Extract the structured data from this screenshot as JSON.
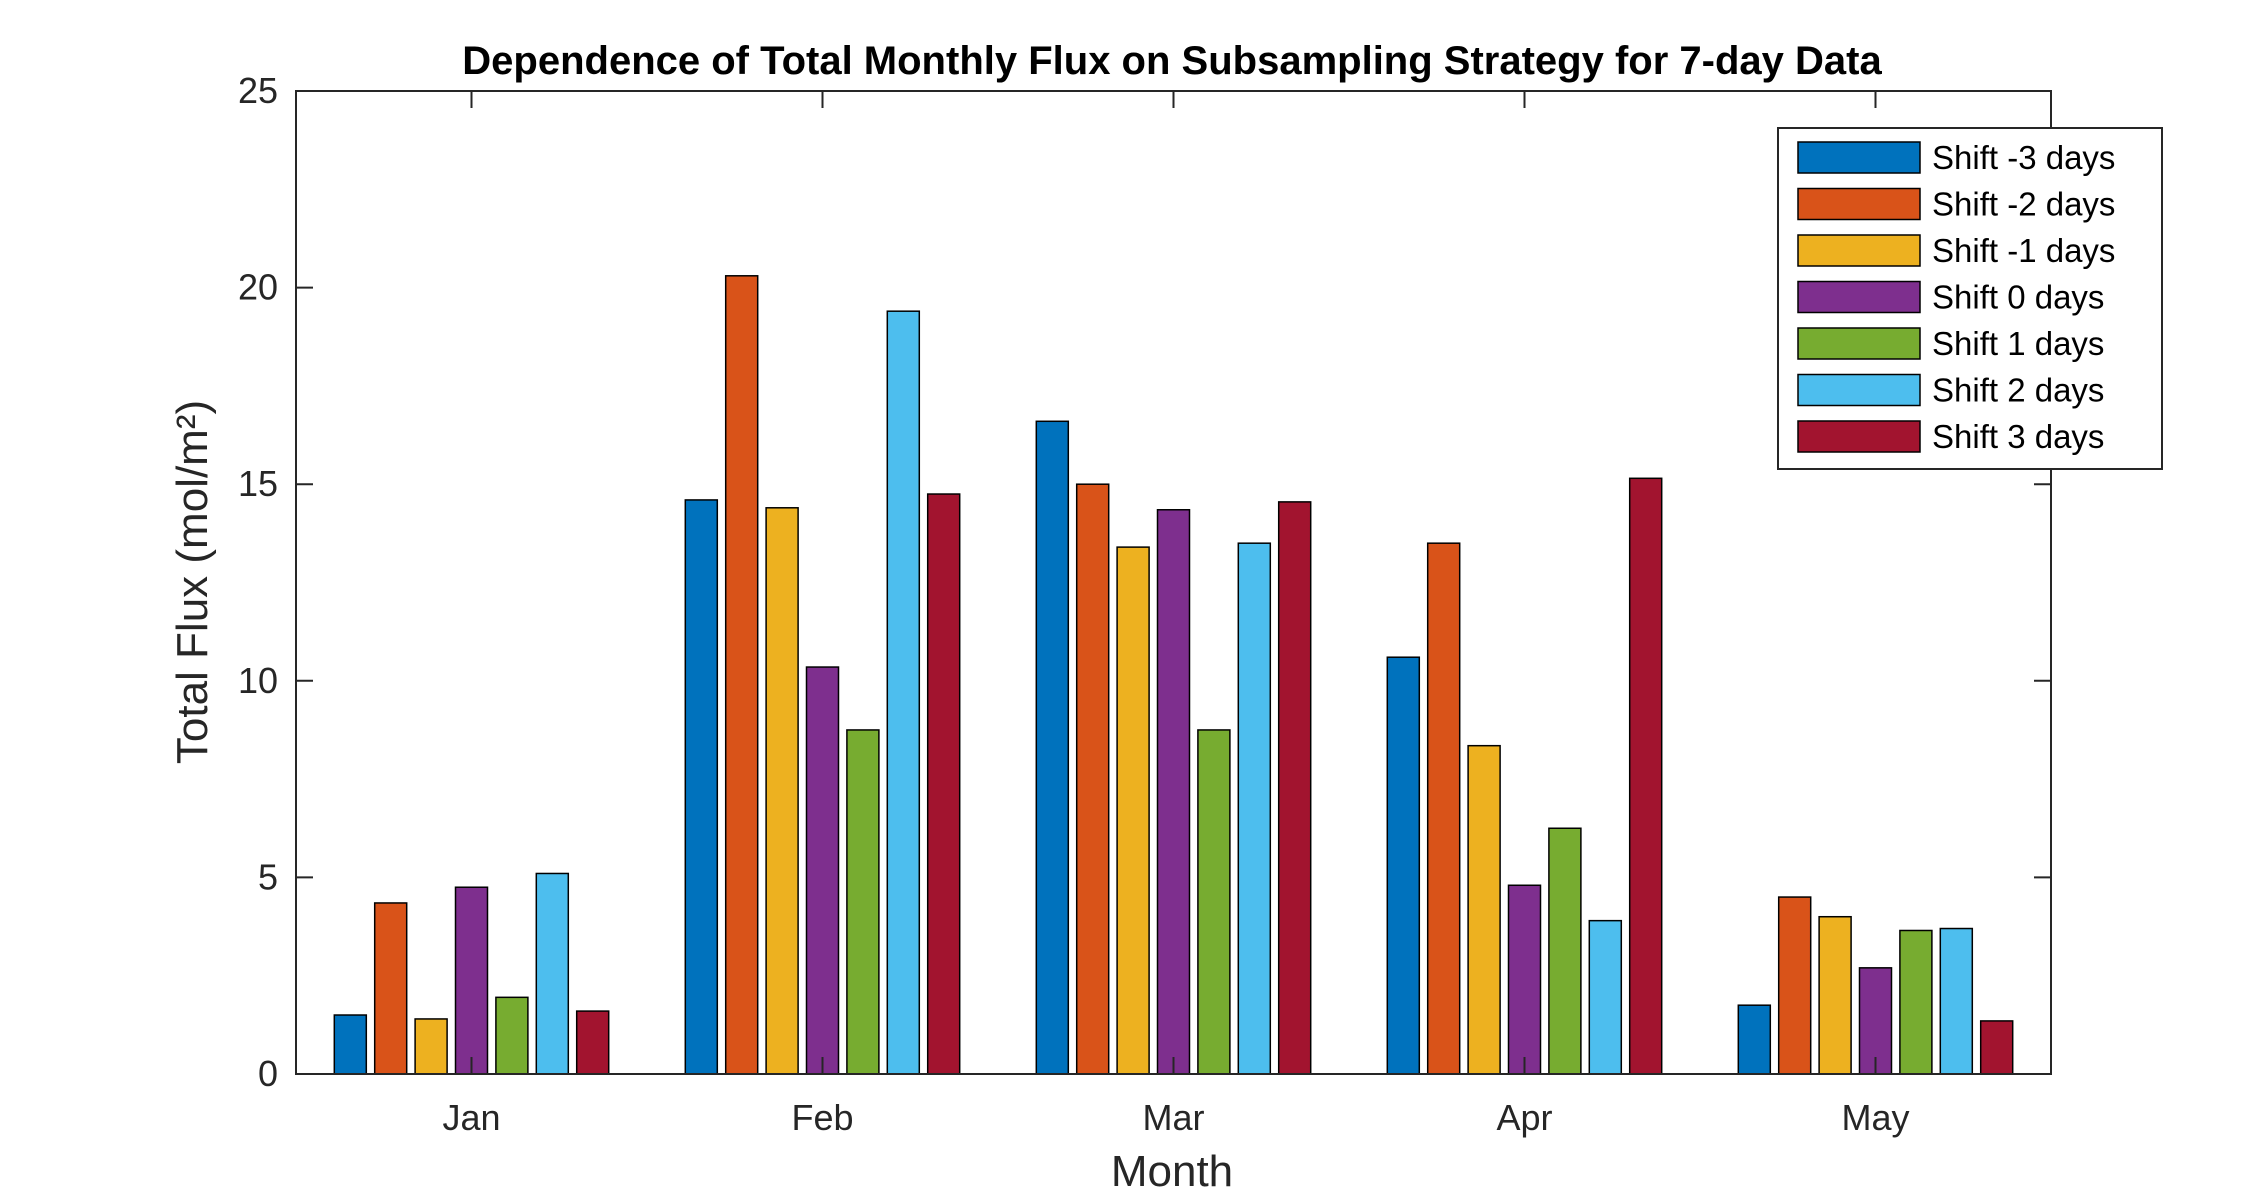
{
  "chart_data": {
    "type": "bar",
    "title": "Dependence of Total Monthly Flux on Subsampling Strategy for 7-day Data",
    "xlabel": "Month",
    "ylabel": "Total Flux (mol/m²)",
    "ylim": [
      0,
      25
    ],
    "yticks": [
      0,
      5,
      10,
      15,
      20,
      25
    ],
    "grid": false,
    "legend_position": "top-right",
    "categories": [
      "Jan",
      "Feb",
      "Mar",
      "Apr",
      "May"
    ],
    "series": [
      {
        "name": "Shift -3 days",
        "color": "#0072BD",
        "values": [
          1.5,
          14.6,
          16.6,
          10.6,
          1.75
        ]
      },
      {
        "name": "Shift -2 days",
        "color": "#D95319",
        "values": [
          4.35,
          20.3,
          15.0,
          13.5,
          4.5
        ]
      },
      {
        "name": "Shift -1 days",
        "color": "#EDB120",
        "values": [
          1.4,
          14.4,
          13.4,
          8.35,
          4.0
        ]
      },
      {
        "name": "Shift 0 days",
        "color": "#7E2F8E",
        "values": [
          4.75,
          10.35,
          14.35,
          4.8,
          2.7
        ]
      },
      {
        "name": "Shift 1 days",
        "color": "#77AC30",
        "values": [
          1.95,
          8.75,
          8.75,
          6.25,
          3.65
        ]
      },
      {
        "name": "Shift 2 days",
        "color": "#4DBEEE",
        "values": [
          5.1,
          19.4,
          13.5,
          3.9,
          3.7
        ]
      },
      {
        "name": "Shift 3 days",
        "color": "#A2142F",
        "values": [
          1.6,
          14.75,
          14.55,
          15.15,
          1.35
        ]
      }
    ]
  }
}
